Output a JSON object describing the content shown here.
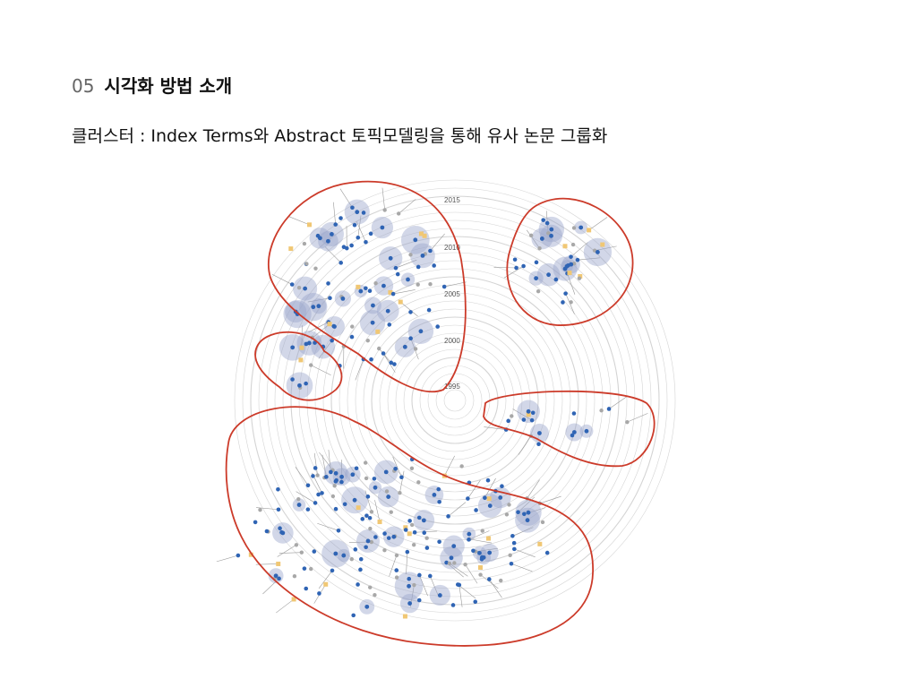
{
  "slide": {
    "section_number": "05",
    "section_title": "시각화 방법 소개",
    "subtitle": "클러스터 : Index Terms와 Abstract 토픽모델링을 통해 유사 논문 그룹화"
  },
  "diagram": {
    "year_labels": [
      "2015",
      "2010",
      "2005",
      "2000",
      "1995"
    ],
    "colors": {
      "ring": "#d4d4d4",
      "halo": "#9ba6cc",
      "paper_dot": "#2f64b4",
      "grey_dot": "#a8a8a8",
      "yellow_square": "#f0c774",
      "cluster_outline": "#cc3b2a"
    },
    "clusters": [
      {
        "name": "cluster-top-left"
      },
      {
        "name": "cluster-top-right"
      },
      {
        "name": "cluster-small-left"
      },
      {
        "name": "cluster-right"
      },
      {
        "name": "cluster-bottom"
      }
    ]
  }
}
